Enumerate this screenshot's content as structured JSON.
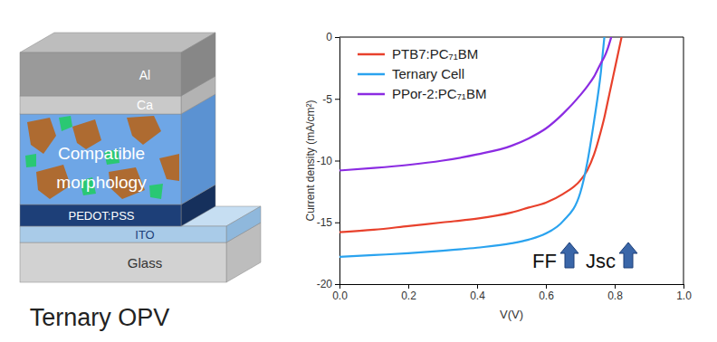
{
  "chart_data": {
    "type": "line",
    "x_label": "V(V)",
    "y_label": "Current density (mA/cm²)",
    "x": [
      0,
      0.1,
      0.2,
      0.3,
      0.4,
      0.5,
      0.55,
      0.6,
      0.65,
      0.7,
      0.72,
      0.74,
      0.76,
      0.77,
      0.78,
      0.79,
      0.8,
      0.82
    ],
    "series": [
      {
        "name": "PTB7:PC₇₁BM",
        "color": "#e8412c",
        "values": [
          -15.8,
          -15.6,
          -15.3,
          -15.0,
          -14.7,
          -14.2,
          -13.8,
          -13.4,
          -12.7,
          -11.6,
          -10.8,
          -9.5,
          -7.6,
          -6.5,
          -5.2,
          -3.9,
          -2.6,
          0
        ]
      },
      {
        "name": "Ternary Cell",
        "color": "#2aa3ef",
        "values": [
          -17.8,
          -17.65,
          -17.5,
          -17.3,
          -17.05,
          -16.7,
          -16.4,
          -15.9,
          -14.9,
          -12.6,
          -10.2,
          -6.8,
          -2.8,
          0,
          null,
          null,
          null,
          null
        ]
      },
      {
        "name": "PPor-2:PC₇₁BM",
        "color": "#8b2be2",
        "values": [
          -10.8,
          -10.6,
          -10.35,
          -10.0,
          -9.5,
          -8.8,
          -8.2,
          -7.4,
          -6.2,
          -4.7,
          -4.0,
          -3.2,
          -2.1,
          -1.6,
          -0.9,
          0,
          null,
          null
        ]
      }
    ],
    "xlim": [
      0,
      1.0
    ],
    "xticks": [
      {
        "value": 0,
        "label": "0.0"
      },
      {
        "value": 0.2,
        "label": "0.2"
      },
      {
        "value": 0.4,
        "label": "0.4"
      },
      {
        "value": 0.6,
        "label": "0.6"
      },
      {
        "value": 0.8,
        "label": "0.8"
      },
      {
        "value": 1.0,
        "label": "1.0"
      }
    ],
    "ylim": [
      -20,
      0
    ],
    "yticks": [
      -20,
      -15,
      -10,
      -5,
      0
    ],
    "legend": "upper left",
    "annotations": [
      "FF",
      "Jsc"
    ]
  },
  "diagram": {
    "layers": [
      "Al",
      "Ca",
      "PEDOT:PSS",
      "ITO",
      "Glass"
    ],
    "active_layer": [
      "Compatible",
      "morphology"
    ],
    "caption": "Ternary OPV"
  }
}
